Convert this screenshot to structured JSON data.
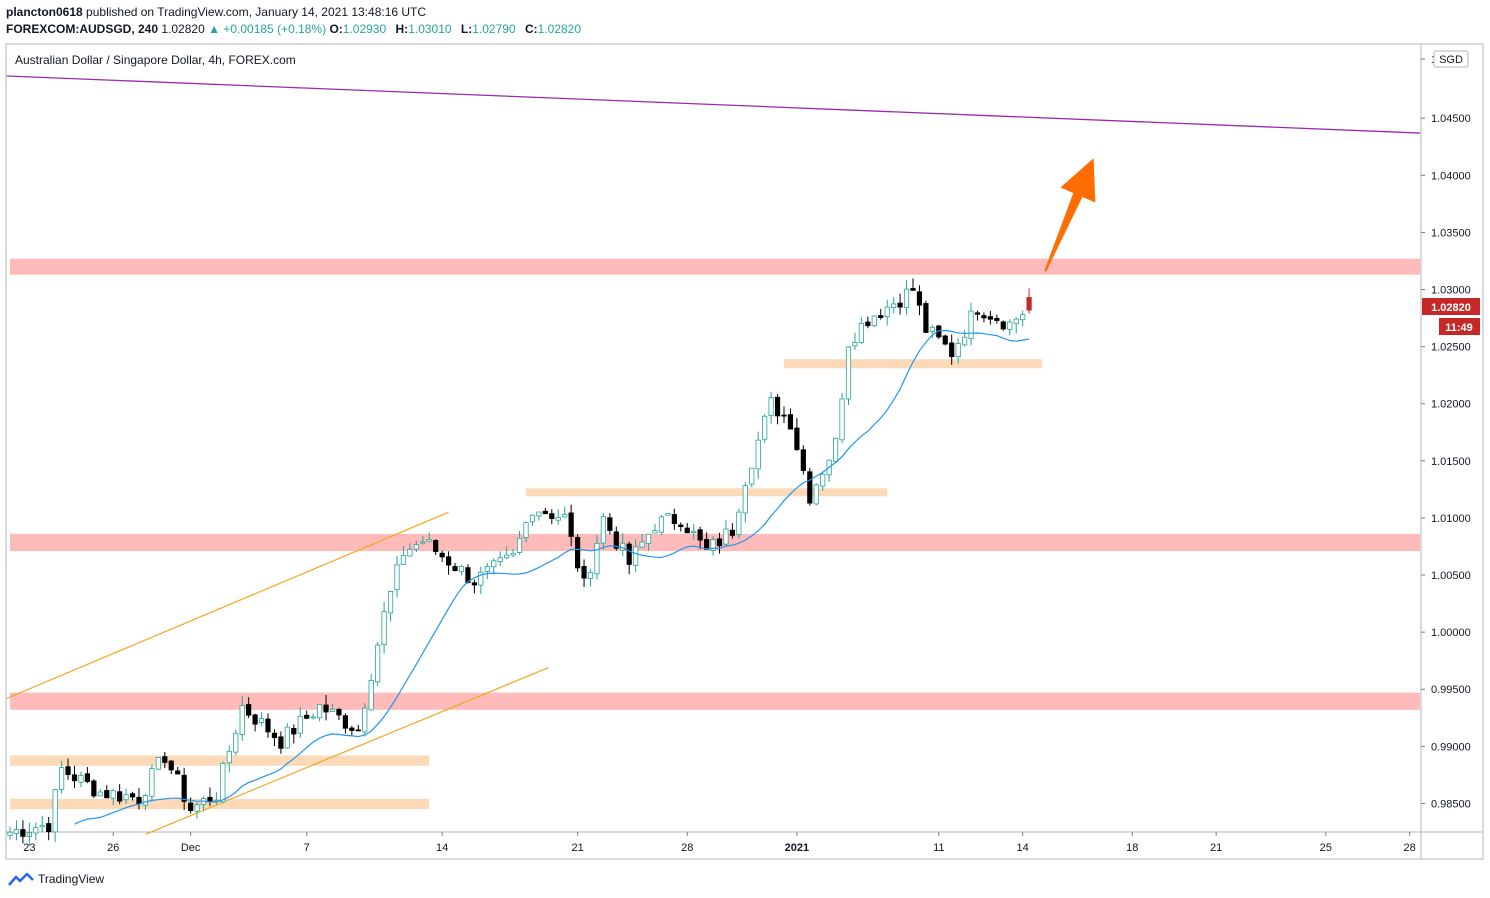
{
  "header": {
    "author": "plancton0618",
    "published_text": "published on TradingView.com, January 14, 2021 13:48:16 UTC",
    "symbol": "FOREXCOM:AUDSGD, 240",
    "last": "1.02820",
    "change": "+0.00185 (+0.18%)",
    "o_label": "O:",
    "o_value": "1.02930",
    "h_label": "H:",
    "h_value": "1.03010",
    "l_label": "L:",
    "l_value": "1.02790",
    "c_label": "C:",
    "c_value": "1.02820"
  },
  "footer": {
    "brand": "TradingView"
  },
  "colors": {
    "bull": "#26a69a",
    "bear": "#000000",
    "ma": "#2196f3",
    "resistance_zone": "#ffb3b3",
    "support_zone": "#fcd3ab",
    "channel": "#f5a623",
    "trendline": "#9c27b0",
    "arrow": "#ff6d00",
    "price_badge": "#c62828"
  },
  "chart_data": {
    "type": "candlestick",
    "title": "Australian Dollar / Singapore Dollar, 4h, FOREX.com",
    "currency": "SGD",
    "ylim": [
      0.9825,
      1.0515
    ],
    "y_ticks": [
      "0.98500",
      "0.99000",
      "0.99500",
      "1.00000",
      "1.00500",
      "1.01000",
      "1.01500",
      "1.02000",
      "1.02500",
      "1.03000",
      "1.03500",
      "1.04000",
      "1.04500"
    ],
    "x_ticks": [
      {
        "label": "23",
        "bar": 3
      },
      {
        "label": "26",
        "bar": 16
      },
      {
        "label": "Dec",
        "bar": 28
      },
      {
        "label": "7",
        "bar": 46
      },
      {
        "label": "14",
        "bar": 67
      },
      {
        "label": "21",
        "bar": 88
      },
      {
        "label": "28",
        "bar": 105
      },
      {
        "label": "2021",
        "bar": 122
      },
      {
        "label": "11",
        "bar": 144
      },
      {
        "label": "14",
        "bar": 157
      },
      {
        "label": "18",
        "bar": 174
      },
      {
        "label": "21",
        "bar": 187
      },
      {
        "label": "25",
        "bar": 204
      },
      {
        "label": "28",
        "bar": 217
      }
    ],
    "last_price_label": "1.02820",
    "countdown_label": "11:49",
    "anchors": [
      [
        0,
        0.9825
      ],
      [
        6,
        0.9832
      ],
      [
        8,
        0.988
      ],
      [
        14,
        0.986
      ],
      [
        20,
        0.9855
      ],
      [
        24,
        0.9892
      ],
      [
        28,
        0.9845
      ],
      [
        32,
        0.9858
      ],
      [
        36,
        0.9935
      ],
      [
        42,
        0.9905
      ],
      [
        48,
        0.9935
      ],
      [
        54,
        0.9915
      ],
      [
        58,
        1.0015
      ],
      [
        61,
        1.007
      ],
      [
        64,
        1.008
      ],
      [
        72,
        1.0045
      ],
      [
        78,
        1.0065
      ],
      [
        81,
        1.011
      ],
      [
        86,
        1.01
      ],
      [
        89,
        1.004
      ],
      [
        92,
        1.01
      ],
      [
        96,
        1.006
      ],
      [
        100,
        1.0095
      ],
      [
        104,
        1.01
      ],
      [
        108,
        1.007
      ],
      [
        112,
        1.009
      ],
      [
        114,
        1.0135
      ],
      [
        118,
        1.02
      ],
      [
        121,
        1.0185
      ],
      [
        124,
        1.012
      ],
      [
        128,
        1.0165
      ],
      [
        130,
        1.0255
      ],
      [
        133,
        1.0275
      ],
      [
        136,
        1.0285
      ],
      [
        140,
        1.03
      ],
      [
        142,
        1.0265
      ],
      [
        146,
        1.0245
      ],
      [
        150,
        1.0285
      ],
      [
        155,
        1.027
      ],
      [
        158,
        1.0285
      ]
    ],
    "zones": [
      {
        "kind": "resistance",
        "from_bar": 0,
        "to_bar": 219,
        "low": 1.0313,
        "high": 1.0327
      },
      {
        "kind": "resistance",
        "from_bar": 0,
        "to_bar": 219,
        "low": 1.0071,
        "high": 1.0086
      },
      {
        "kind": "resistance",
        "from_bar": 0,
        "to_bar": 219,
        "low": 0.9932,
        "high": 0.9947
      },
      {
        "kind": "support",
        "from_bar": 120,
        "to_bar": 160,
        "low": 1.0231,
        "high": 1.0239
      },
      {
        "kind": "support",
        "from_bar": 80,
        "to_bar": 136,
        "low": 1.0119,
        "high": 1.0126
      },
      {
        "kind": "support",
        "from_bar": 0,
        "to_bar": 65,
        "low": 0.9883,
        "high": 0.9892
      },
      {
        "kind": "support",
        "from_bar": 0,
        "to_bar": 65,
        "low": 0.9845,
        "high": 0.9854
      }
    ],
    "trendlines": [
      {
        "kind": "trendline",
        "x1": -0.5,
        "y1": 1.0487,
        "x2": 219,
        "y2": 1.0437
      },
      {
        "kind": "channel",
        "x1": -0.5,
        "y1": 0.9942,
        "x2": 68,
        "y2": 1.0105
      },
      {
        "kind": "channel",
        "x1": 21,
        "y1": 0.9823,
        "x2": 83.5,
        "y2": 0.9969
      }
    ],
    "arrow": {
      "x1": 160.5,
      "y1": 1.0316,
      "x2": 168,
      "y2": 1.0415
    }
  }
}
